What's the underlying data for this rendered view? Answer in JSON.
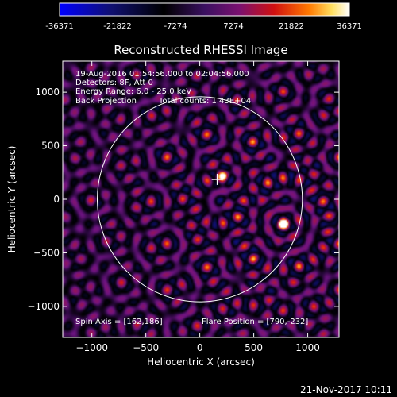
{
  "chart_data": {
    "type": "heatmap",
    "title": "Reconstructed RHESSI Image",
    "xlabel": "Heliocentric X (arcsec)",
    "ylabel": "Heliocentric Y (arcsec)",
    "xlim": [
      -1270,
      1290
    ],
    "ylim": [
      -1290,
      1290
    ],
    "x_ticks": [
      -1000,
      -500,
      0,
      500,
      1000
    ],
    "y_ticks": [
      -1000,
      -500,
      0,
      500,
      1000
    ],
    "colorbar": {
      "colormap": "purple-red-yellow-white with blue negatives",
      "range": [
        -36371,
        36371
      ],
      "tick_labels": [
        "-36371",
        "-21822",
        "-7274",
        "7274",
        "21822",
        "36371"
      ]
    },
    "annotations": {
      "time_range": "19-Aug-2016 01:54:56.000 to 02:04:56.000",
      "detectors": "Detectors: 8F, Att 0",
      "energy_range": "Energy Range: 6.0 - 25.0 keV",
      "method": "Back Projection",
      "total_counts": "Total counts: 1.43E+04",
      "spin_axis": "Spin Axis = [162,186]",
      "flare_position": "Flare Position = [790,-232]"
    },
    "solar_limb_radius_arcsec": 950,
    "marker": {
      "shape": "cross",
      "x": 162,
      "y": 186
    },
    "sources": [
      {
        "x": 780,
        "y": -230,
        "peak": 36371
      },
      {
        "x": 200,
        "y": 210,
        "peak": 24000
      }
    ],
    "legend": "none",
    "grid": false
  },
  "footer": {
    "date": "21-Nov-2017 10:11"
  },
  "colors": {
    "background": "#000000",
    "foreground": "#ffffff",
    "limb": "#ffffff"
  }
}
